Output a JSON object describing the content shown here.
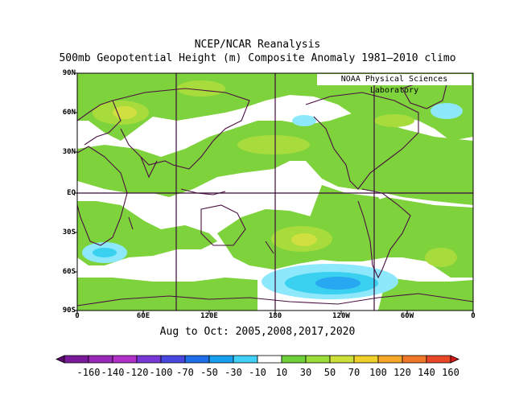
{
  "title": {
    "line1": "NCEP/NCAR Reanalysis",
    "line2": "500mb Geopotential Height (m) Composite Anomaly 1981–2010 climo"
  },
  "credit": "NOAA Physical Sciences Laboratory",
  "composite_dates": "Aug to Oct: 2005,2008,2017,2020",
  "axes": {
    "lat_labels": [
      "90N",
      "60N",
      "30N",
      "EQ",
      "30S",
      "60S",
      "90S"
    ],
    "lon_labels": [
      "0",
      "60E",
      "120E",
      "180",
      "120W",
      "60W",
      "0"
    ]
  },
  "colorbar": {
    "labels": [
      "-160",
      "-140",
      "-120",
      "-100",
      "-70",
      "-50",
      "-30",
      "-10",
      "10",
      "30",
      "50",
      "70",
      "100",
      "120",
      "140",
      "160"
    ],
    "colors": [
      "#5a0a6e",
      "#7a1a9a",
      "#9a28b8",
      "#b030c8",
      "#7838d8",
      "#4848e0",
      "#1f70e8",
      "#18a0f0",
      "#40d0f8",
      "#ffffff",
      "#6ed13a",
      "#9adc3a",
      "#cde03a",
      "#f0d02a",
      "#f8a828",
      "#f07828",
      "#e84828",
      "#d81818"
    ]
  },
  "map_colors": {
    "green": "#7ed23c",
    "light_green": "#a8dc3c",
    "yellow_green": "#d0e040",
    "yellow": "#ece24a",
    "cyan": "#3ad0f0",
    "light_cyan": "#8ce8fa",
    "blue": "#28a8f0",
    "coast": "#4a1040",
    "grid": "#3a0a3a"
  }
}
